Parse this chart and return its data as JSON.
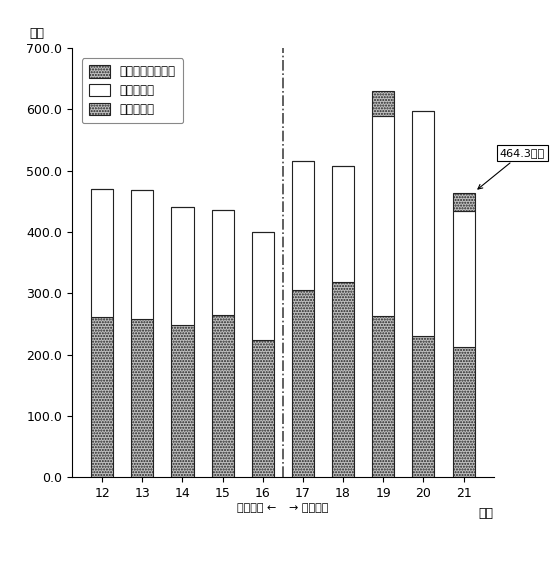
{
  "ylabel_top": "億円",
  "xlabel": "年度",
  "ylim": [
    0,
    700
  ],
  "yticks": [
    0,
    100,
    200,
    300,
    400,
    500,
    600,
    700
  ],
  "ytick_labels": [
    "0.0",
    "100.0",
    "200.0",
    "300.0",
    "400.0",
    "500.0",
    "600.0",
    "700.0"
  ],
  "years": [
    12,
    13,
    14,
    15,
    16,
    17,
    18,
    19,
    20,
    21
  ],
  "tan_data": [
    262,
    258,
    248,
    264,
    224,
    305,
    318,
    263,
    230,
    212
  ],
  "hojo_data": [
    208,
    210,
    192,
    172,
    176,
    211,
    190,
    327,
    368,
    222
  ],
  "choku_data": [
    0,
    0,
    0,
    0,
    0,
    0,
    0,
    40,
    0,
    30
  ],
  "annotation_text": "464.3億円",
  "legend_labels": [
    "国直轄事業負担金",
    "補助事業費",
    "単独事業費"
  ],
  "bar_edge_color": "#222222",
  "divider_color": "#444444",
  "background_color": "#ffffff",
  "bar_width": 0.55
}
